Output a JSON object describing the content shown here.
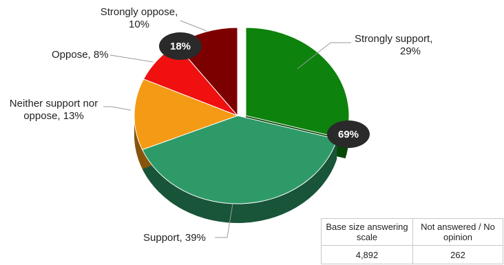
{
  "chart_data": {
    "type": "pie",
    "title": "",
    "slices": [
      {
        "label": "Strongly support, 29%",
        "category": "Strongly support",
        "value": 29,
        "color": "#0d820d",
        "exploded": true
      },
      {
        "label": "Support, 39%",
        "category": "Support",
        "value": 39,
        "color": "#2e9a68",
        "exploded": false
      },
      {
        "label": "Neither support nor oppose, 13%",
        "category": "Neither support nor oppose",
        "value": 13,
        "color": "#f59a14",
        "exploded": false
      },
      {
        "label": "Oppose, 8%",
        "category": "Oppose",
        "value": 8,
        "color": "#f01010",
        "exploded": false
      },
      {
        "label": "Strongly oppose, 10%",
        "category": "Strongly oppose",
        "value": 10,
        "color": "#7d0000",
        "exploded": false
      }
    ],
    "badges": [
      {
        "text": "69%",
        "groups": [
          "Strongly support",
          "Support"
        ]
      },
      {
        "text": "18%",
        "groups": [
          "Oppose",
          "Strongly oppose"
        ]
      }
    ]
  },
  "table": {
    "headers": [
      "Base size answering scale",
      "Not answered / No opinion"
    ],
    "values": [
      "4,892",
      "262"
    ]
  }
}
